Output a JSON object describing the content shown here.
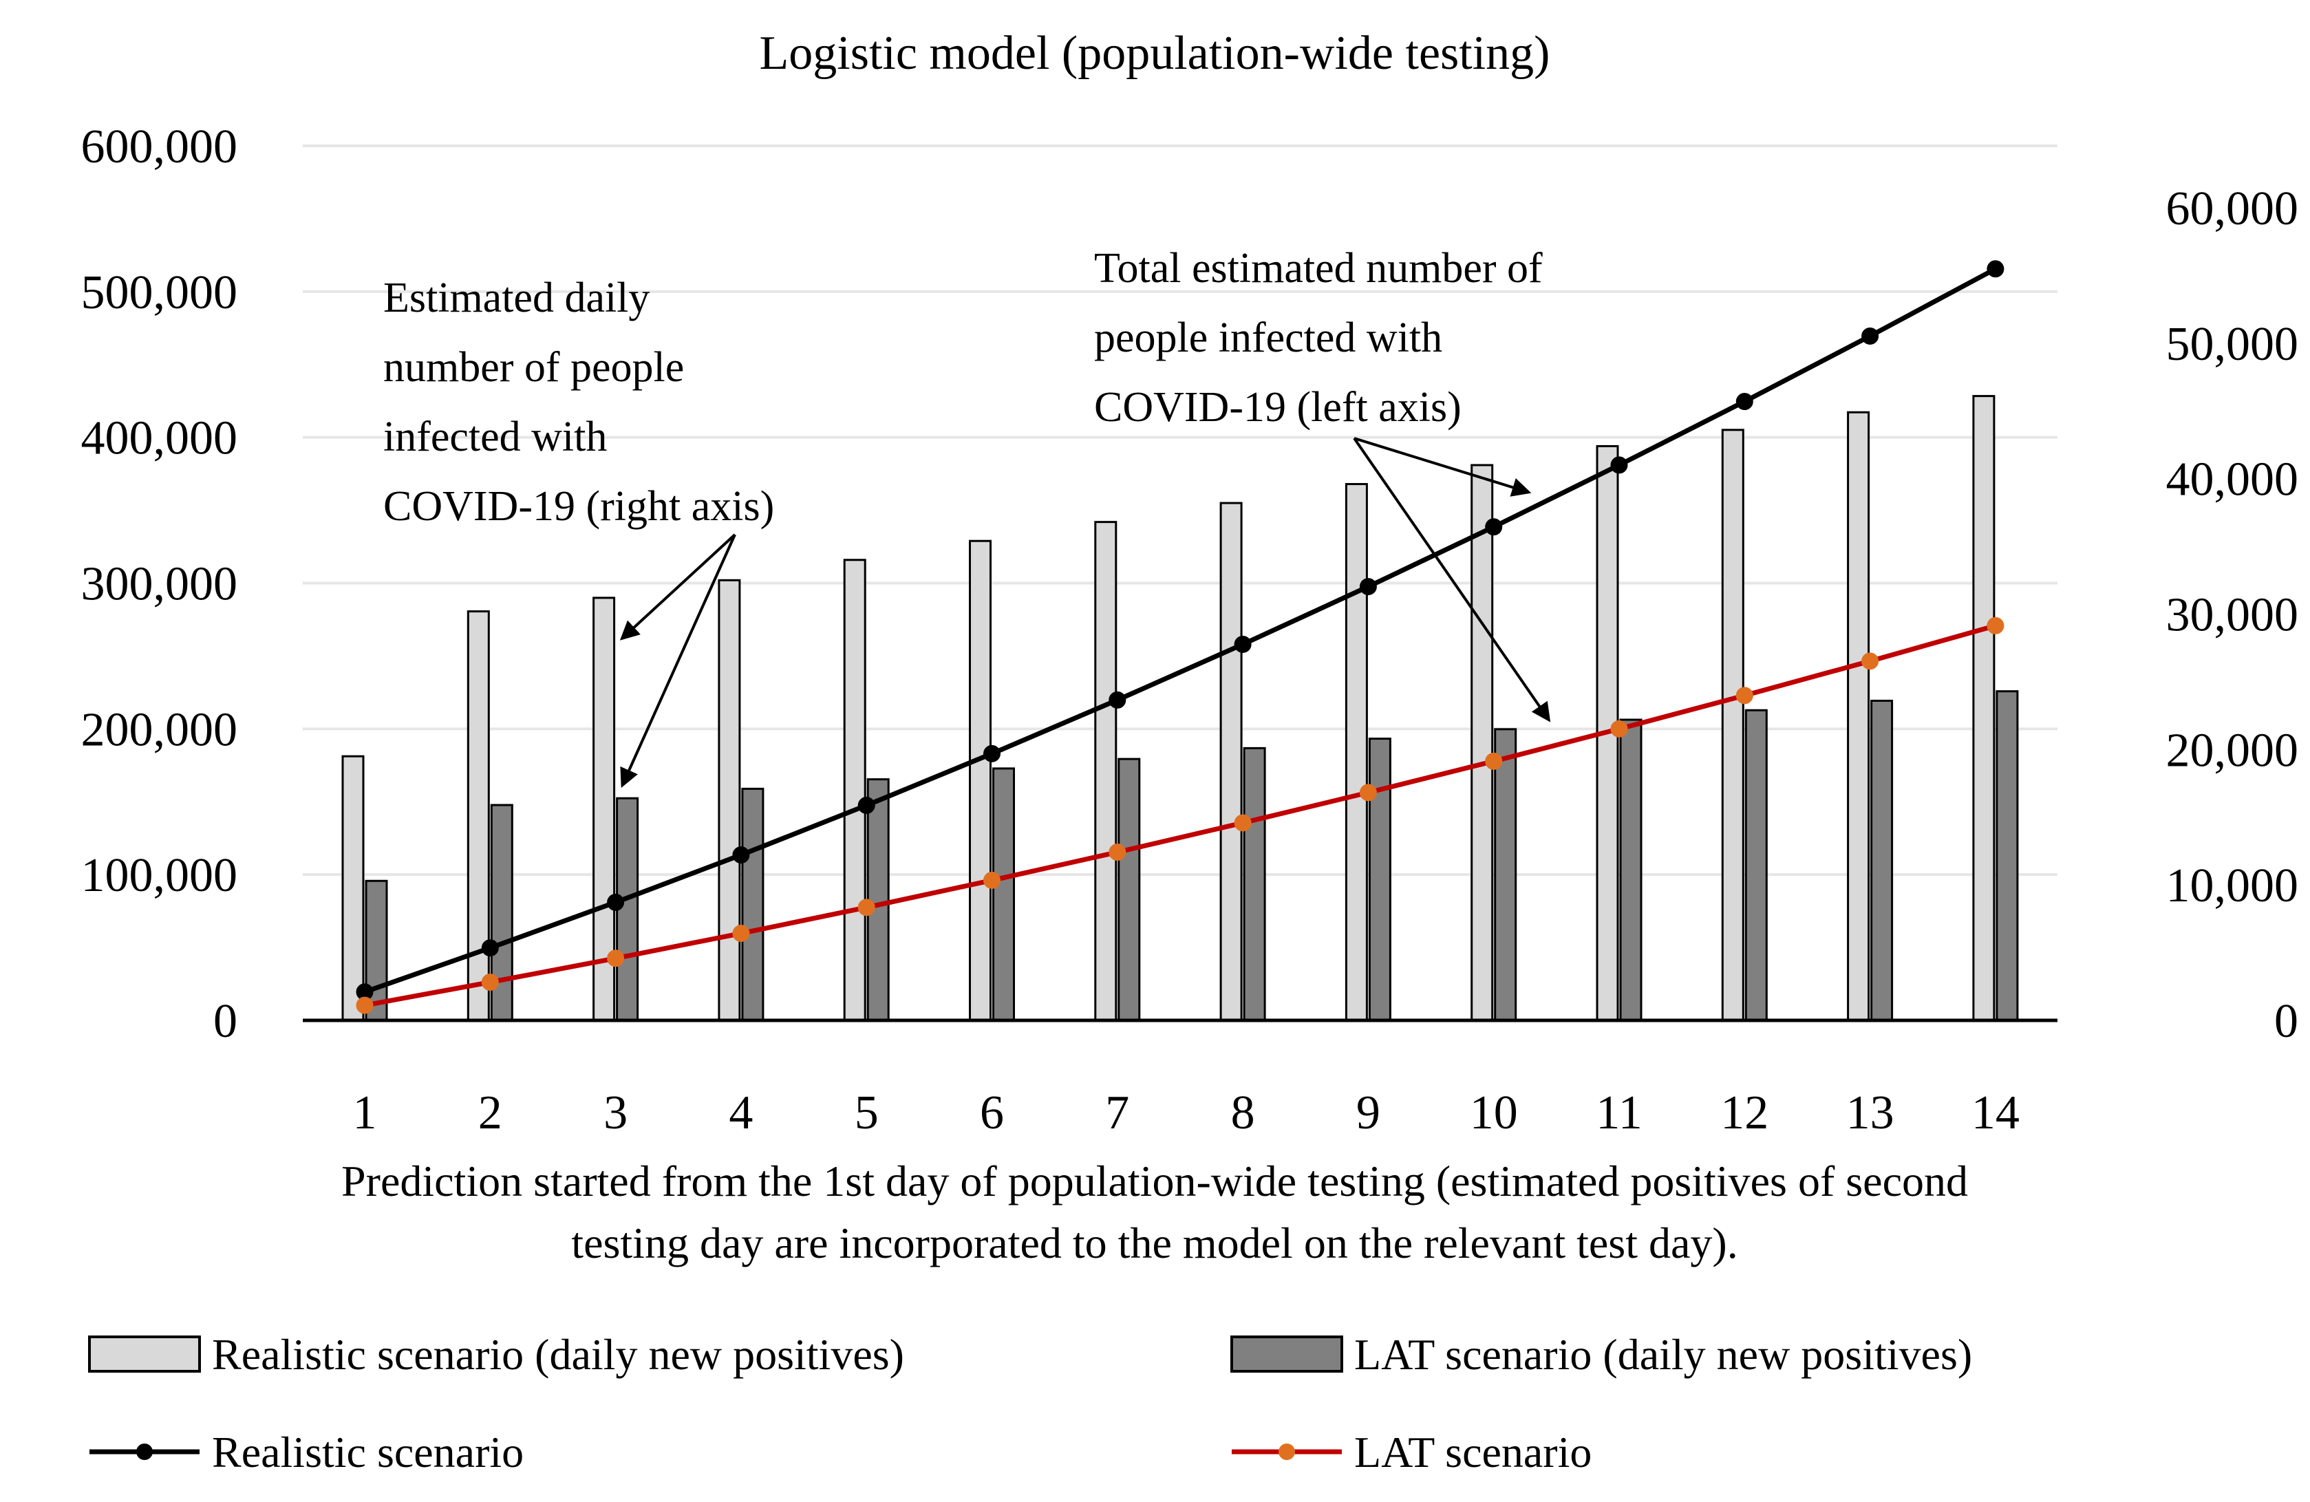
{
  "chart_data": {
    "type": "bar",
    "title": "Logistic model (population-wide testing)",
    "xlabel_lines": [
      "Prediction started from the 1st day of population-wide testing (estimated positives of second",
      "testing day are incorporated to the model on the relevant test day)."
    ],
    "categories": [
      "1",
      "2",
      "3",
      "4",
      "5",
      "6",
      "7",
      "8",
      "9",
      "10",
      "11",
      "12",
      "13",
      "14"
    ],
    "y_left": {
      "ylim": [
        0,
        600000
      ],
      "ticks": [
        0,
        100000,
        200000,
        300000,
        400000,
        500000,
        600000
      ],
      "tick_labels": [
        "0",
        "100,000",
        "200,000",
        "300,000",
        "400,000",
        "500,000",
        "600,000"
      ]
    },
    "y_right": {
      "ylim": [
        0,
        65000
      ],
      "ticks": [
        0,
        10000,
        20000,
        30000,
        40000,
        50000,
        60000
      ],
      "tick_labels": [
        "0",
        "10,000",
        "20,000",
        "30,000",
        "40,000",
        "50,000",
        "60,000"
      ]
    },
    "grid": true,
    "legend_position": "bottom",
    "series": [
      {
        "name": "Realistic scenario (daily new positives)",
        "kind": "bar",
        "axis": "right",
        "color": "#d9d9d9",
        "values": [
          19500,
          30200,
          31200,
          32500,
          34000,
          35400,
          36800,
          38200,
          39600,
          41000,
          42400,
          43600,
          44900,
          46100
        ]
      },
      {
        "name": "LAT scenario (daily new positives)",
        "kind": "bar",
        "axis": "right",
        "color": "#808080",
        "values": [
          10300,
          15900,
          16400,
          17100,
          17800,
          18600,
          19300,
          20100,
          20800,
          21500,
          22200,
          22900,
          23600,
          24300
        ]
      },
      {
        "name": "Realistic scenario",
        "kind": "line",
        "axis": "left",
        "color": "#000000",
        "marker_color": "#000000",
        "values": [
          19500,
          49700,
          81000,
          113500,
          147500,
          183000,
          219800,
          258000,
          297600,
          338600,
          381000,
          424600,
          469500,
          515600
        ]
      },
      {
        "name": "LAT scenario",
        "kind": "line",
        "axis": "left",
        "color": "#c00000",
        "marker_color": "#e07020",
        "values": [
          10300,
          26200,
          42600,
          59700,
          77500,
          96100,
          115400,
          135500,
          156300,
          177800,
          200000,
          222900,
          246500,
          270800
        ]
      }
    ],
    "annotations": [
      {
        "lines": [
          "Estimated daily",
          "number of people",
          "infected with",
          "COVID-19 (right axis)"
        ]
      },
      {
        "lines": [
          "Total estimated number of",
          "people infected with",
          "COVID-19 (left axis)"
        ]
      }
    ]
  }
}
